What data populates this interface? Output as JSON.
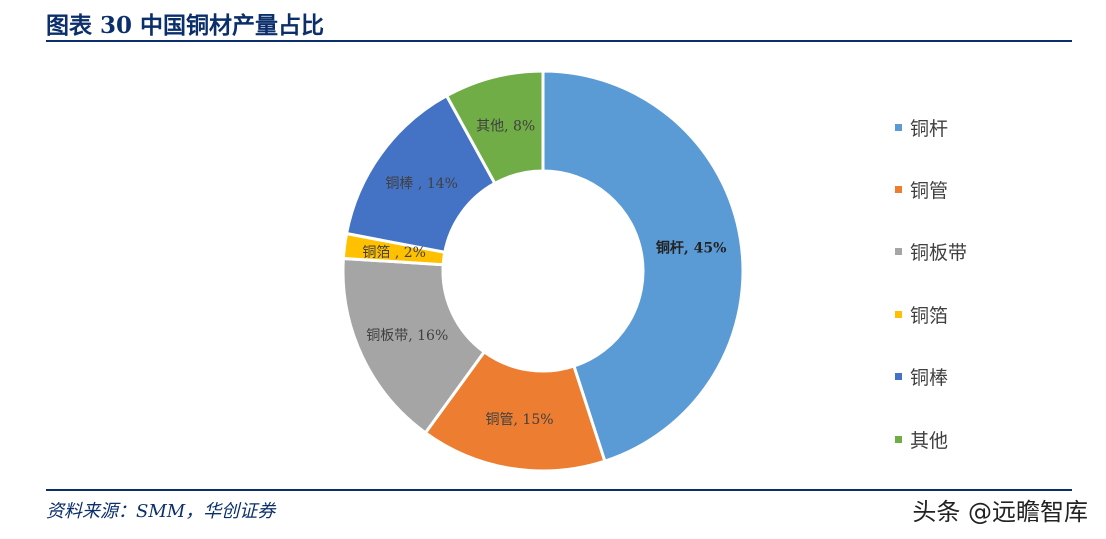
{
  "header": {
    "title": "图表 30 中国铜材产量占比"
  },
  "footer": {
    "source": "资料来源：SMM，华创证券",
    "watermark": "头条 @远瞻智库"
  },
  "chart_data": {
    "type": "pie",
    "title": "",
    "donut": true,
    "start_angle_deg": 0,
    "direction": "clockwise",
    "legend_position": "right",
    "slices": [
      {
        "name": "铜杆",
        "value": 45,
        "label": "铜杆, 45%",
        "color": "#5B9BD5",
        "label_color": "#222222",
        "label_bold": true
      },
      {
        "name": "铜管",
        "value": 15,
        "label": "铜管, 15%",
        "color": "#ED7D31",
        "label_color": "#404040",
        "label_bold": false
      },
      {
        "name": "铜板带",
        "value": 16,
        "label": "铜板带, 16%",
        "color": "#A5A5A5",
        "label_color": "#404040",
        "label_bold": false
      },
      {
        "name": "铜箔",
        "value": 2,
        "label": "铜箔 , 2%",
        "color": "#FFC000",
        "label_color": "#404040",
        "label_bold": false
      },
      {
        "name": "铜棒",
        "value": 14,
        "label": "铜棒 , 14%",
        "color": "#4472C4",
        "label_color": "#404040",
        "label_bold": false
      },
      {
        "name": "其他",
        "value": 8,
        "label": "其他, 8%",
        "color": "#70AD47",
        "label_color": "#404040",
        "label_bold": false
      }
    ]
  }
}
